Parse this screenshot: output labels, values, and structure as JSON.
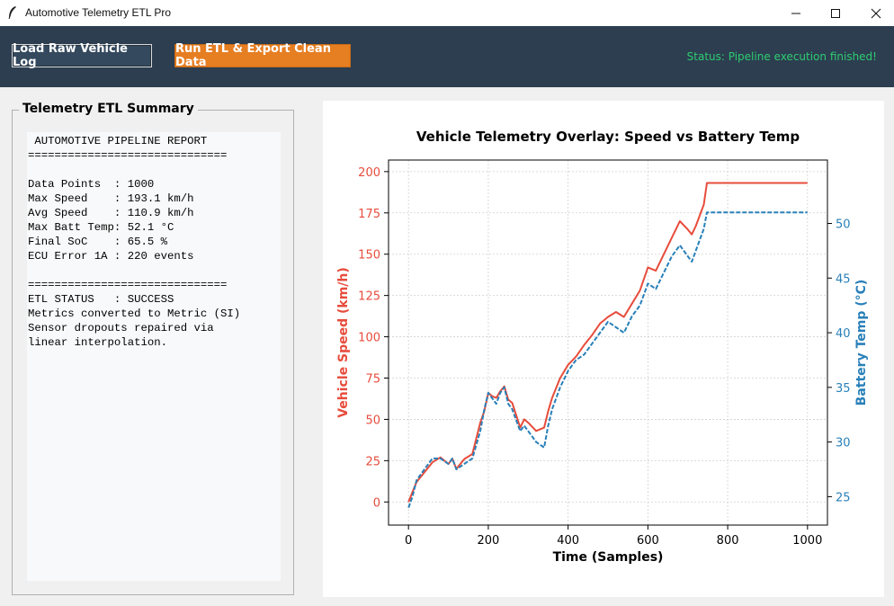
{
  "window": {
    "title": "Automotive Telemetry ETL Pro"
  },
  "toolbar": {
    "load_label": "Load Raw Vehicle Log",
    "run_label": "Run ETL & Export Clean Data",
    "status": "Status: Pipeline execution finished!",
    "colors": {
      "bg": "#2c3e50",
      "load_btn": "#34495e",
      "run_btn": "#e67e22",
      "status": "#2ecc71"
    }
  },
  "summary": {
    "group_title": "Telemetry ETL Summary",
    "report_lines": [
      " AUTOMOTIVE PIPELINE REPORT",
      "==============================",
      "",
      "Data Points  : 1000",
      "Max Speed    : 193.1 km/h",
      "Avg Speed    : 110.9 km/h",
      "Max Batt Temp: 52.1 °C",
      "Final SoC    : 65.5 %",
      "ECU Error 1A : 220 events",
      "",
      "==============================",
      "ETL STATUS   : SUCCESS",
      "Metrics converted to Metric (SI)",
      "Sensor dropouts repaired via",
      "linear interpolation."
    ]
  },
  "chart_data": {
    "type": "line",
    "title": "Vehicle Telemetry Overlay: Speed vs Battery Temp",
    "xlabel": "Time (Samples)",
    "ylabel": "Vehicle Speed (km/h)",
    "ylabel_right": "Battery Temp (°C)",
    "xlim": [
      -50,
      1050
    ],
    "ylim": [
      -14,
      207
    ],
    "ylim_right": [
      22.4,
      55.8
    ],
    "xticks": [
      0,
      200,
      400,
      600,
      800,
      1000
    ],
    "yticks": [
      0,
      25,
      50,
      75,
      100,
      125,
      150,
      175,
      200
    ],
    "yticks_right": [
      25,
      30,
      35,
      40,
      45,
      50
    ],
    "grid": true,
    "series": [
      {
        "axis": "left",
        "color": "#e74c3c",
        "style": "solid",
        "x": [
          0,
          10,
          20,
          40,
          60,
          80,
          100,
          110,
          120,
          140,
          160,
          180,
          190,
          200,
          210,
          220,
          230,
          240,
          250,
          260,
          280,
          290,
          300,
          320,
          340,
          350,
          360,
          380,
          400,
          420,
          440,
          460,
          480,
          500,
          520,
          540,
          560,
          580,
          600,
          620,
          640,
          660,
          680,
          700,
          710,
          720,
          740,
          748,
          760,
          780,
          800,
          850,
          900,
          950,
          1000
        ],
        "values": [
          0,
          6,
          12,
          18,
          24,
          27,
          23,
          26,
          20,
          26,
          29,
          48,
          55,
          66,
          64,
          63,
          67,
          70,
          62,
          60,
          45,
          50,
          48,
          43,
          45,
          55,
          63,
          75,
          83,
          88,
          95,
          101,
          108,
          112,
          115,
          112,
          120,
          128,
          142,
          140,
          150,
          160,
          170,
          165,
          162,
          167,
          180,
          193.1,
          193.1,
          193.1,
          193.1,
          193.1,
          193.1,
          193.1,
          193.1
        ]
      },
      {
        "axis": "right",
        "color": "#2980b9",
        "style": "dashed",
        "x": [
          0,
          10,
          20,
          40,
          60,
          80,
          100,
          110,
          120,
          140,
          160,
          180,
          190,
          200,
          210,
          220,
          230,
          240,
          250,
          260,
          280,
          290,
          300,
          320,
          340,
          350,
          360,
          380,
          400,
          420,
          440,
          460,
          480,
          500,
          520,
          540,
          560,
          580,
          600,
          620,
          640,
          660,
          680,
          700,
          710,
          720,
          740,
          748,
          760,
          780,
          800,
          850,
          900,
          950,
          1000
        ],
        "values": [
          24,
          25,
          26.5,
          27.5,
          28.5,
          28.5,
          28,
          28.5,
          27.5,
          28,
          28.5,
          31,
          33,
          34.5,
          34,
          33.5,
          34.5,
          35,
          33.5,
          33,
          31,
          31.5,
          31,
          30,
          29.5,
          31.5,
          33,
          35,
          36.5,
          37.5,
          38,
          39,
          40,
          41,
          40.5,
          40,
          41.5,
          42.5,
          44.5,
          44,
          45.5,
          47,
          48,
          47,
          46.5,
          47.5,
          49.5,
          51,
          51,
          51,
          51,
          51,
          51,
          51,
          51
        ]
      }
    ]
  }
}
